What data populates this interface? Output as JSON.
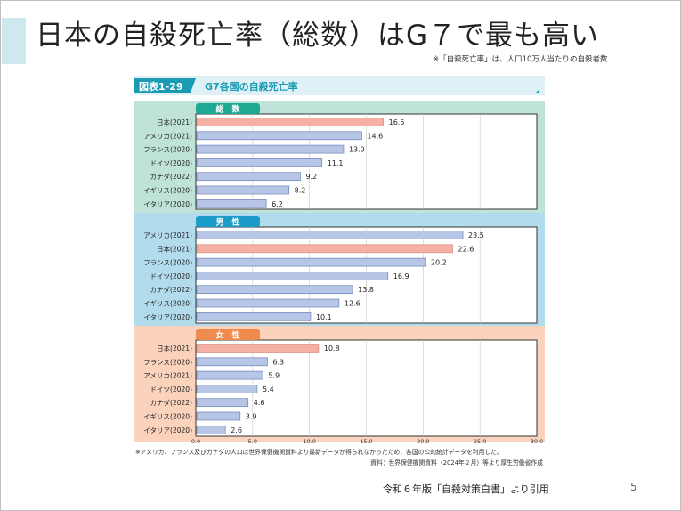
{
  "slide": {
    "title": "日本の自殺死亡率（総数）はG７で最も高い",
    "title_note": "※「自殺死亡率」は、人口10万人当たりの自殺者数",
    "source": "令和６年版「自殺対策白書」より引用",
    "page_number": "5"
  },
  "colors": {
    "japan_bar": "#f4b0a3",
    "other_bar": "#b7c5e6",
    "bar_stroke": "#6e83b8",
    "header_bg": "#dff1f6",
    "header_text": "#1b9bb3",
    "total_bg": "#bfe3d9",
    "total_tab": "#1fa892",
    "male_bg": "#b2dbec",
    "male_tab": "#1b9bc8",
    "female_bg": "#fbd3bd",
    "female_tab": "#f08a4d"
  },
  "chart_data": {
    "type": "bar",
    "orientation": "horizontal",
    "title": "G7各国の自殺死亡率",
    "figure_label": "図表1-29",
    "xlim": [
      0,
      30
    ],
    "xticks": [
      "0.0",
      "5.0",
      "10.0",
      "15.0",
      "20.0",
      "25.0",
      "30.0"
    ],
    "groups": [
      {
        "name": "総数",
        "categories": [
          "日本(2021)",
          "アメリカ(2021)",
          "フランス(2020)",
          "ドイツ(2020)",
          "カナダ(2022)",
          "イギリス(2020)",
          "イタリア(2020)"
        ],
        "values": [
          16.5,
          14.6,
          13.0,
          11.1,
          9.2,
          8.2,
          6.2
        ],
        "labels": [
          "16.5",
          "14.6",
          "13.0",
          "11.1",
          "9.2",
          "8.2",
          "6.2"
        ]
      },
      {
        "name": "男性",
        "categories": [
          "アメリカ(2021)",
          "日本(2021)",
          "フランス(2020)",
          "ドイツ(2020)",
          "カナダ(2022)",
          "イギリス(2020)",
          "イタリア(2020)"
        ],
        "values": [
          23.5,
          22.6,
          20.2,
          16.9,
          13.8,
          12.6,
          10.1
        ],
        "labels": [
          "23.5",
          "22.6",
          "20.2",
          "16.9",
          "13.8",
          "12.6",
          "10.1"
        ]
      },
      {
        "name": "女性",
        "categories": [
          "日本(2021)",
          "フランス(2020)",
          "アメリカ(2021)",
          "ドイツ(2020)",
          "カナダ(2022)",
          "イギリス(2020)",
          "イタリア(2020)"
        ],
        "values": [
          10.8,
          6.3,
          5.9,
          5.4,
          4.6,
          3.9,
          2.6
        ],
        "labels": [
          "10.8",
          "6.3",
          "5.9",
          "5.4",
          "4.6",
          "3.9",
          "2.6"
        ]
      }
    ],
    "tab_labels": [
      "総　数",
      "男　性",
      "女　性"
    ],
    "highlight_prefix": "日本",
    "footnote": "※アメリカ、フランス及びカナダの人口は世界保健機関資料より最新データが得られなかったため、各国の公的統計データを利用した。",
    "credit": "資料：世界保健機関資料（2024年２月）等より厚生労働省作成"
  }
}
